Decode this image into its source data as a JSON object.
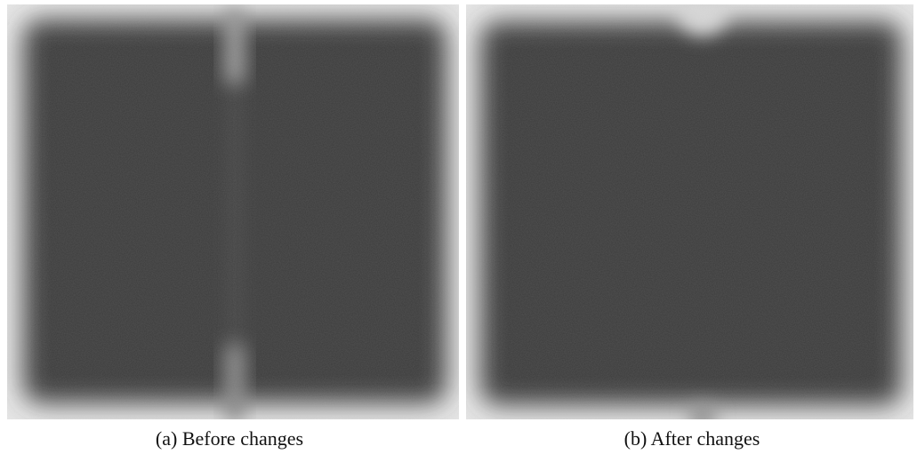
{
  "figures": [
    {
      "caption": "(a) Before changes"
    },
    {
      "caption": "(b) After changes"
    }
  ]
}
